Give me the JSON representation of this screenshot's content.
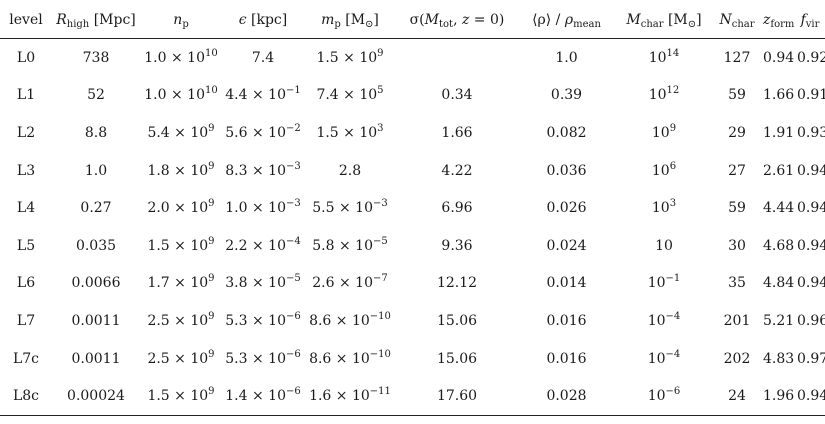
{
  "table": {
    "headers": [
      {
        "pre": "level"
      },
      {
        "sym": "R",
        "sub": "high",
        "post": " [Mpc]"
      },
      {
        "sym": "n",
        "sub": "p"
      },
      {
        "sym": "ϵ",
        "post": " [kpc]"
      },
      {
        "sym": "m",
        "sub": "p",
        "post": " [M",
        "sub2": "⊙",
        "post2": "]"
      },
      {
        "pre": "σ(",
        "sym": "M",
        "sub": "tot",
        "post": ", ",
        "sym2": "z",
        "post2": " = 0)"
      },
      {
        "pre": "⟨ρ⟩ / ",
        "sym": "ρ",
        "sub": "mean"
      },
      {
        "sym": "M",
        "sub": "char",
        "post": " [M",
        "sub2": "⊙",
        "post2": "]"
      },
      {
        "sym": "N",
        "sub": "char"
      },
      {
        "sym": "z",
        "sub": "form"
      },
      {
        "sym": "f",
        "sub": "vir"
      }
    ],
    "rows": [
      {
        "level": "L0",
        "R": "738",
        "np_m": "1.0 × 10",
        "np_e": "10",
        "eps_m": "7.4",
        "eps_e": "",
        "mp_m": "1.5 × 10",
        "mp_e": "9",
        "sigma": "",
        "rho": "1.0",
        "mchar_m": "10",
        "mchar_e": "14",
        "nchar": "127",
        "zform": "0.94",
        "fvir": "0.92"
      },
      {
        "level": "L1",
        "R": "52",
        "np_m": "1.0 × 10",
        "np_e": "10",
        "eps_m": "4.4 × 10",
        "eps_e": "−1",
        "mp_m": "7.4 × 10",
        "mp_e": "5",
        "sigma": "0.34",
        "rho": "0.39",
        "mchar_m": "10",
        "mchar_e": "12",
        "nchar": "59",
        "zform": "1.66",
        "fvir": "0.91"
      },
      {
        "level": "L2",
        "R": "8.8",
        "np_m": "5.4 × 10",
        "np_e": "9",
        "eps_m": "5.6 × 10",
        "eps_e": "−2",
        "mp_m": "1.5 × 10",
        "mp_e": "3",
        "sigma": "1.66",
        "rho": "0.082",
        "mchar_m": "10",
        "mchar_e": "9",
        "nchar": "29",
        "zform": "1.91",
        "fvir": "0.93"
      },
      {
        "level": "L3",
        "R": "1.0",
        "np_m": "1.8 × 10",
        "np_e": "9",
        "eps_m": "8.3 × 10",
        "eps_e": "−3",
        "mp_m": "2.8",
        "mp_e": "",
        "sigma": "4.22",
        "rho": "0.036",
        "mchar_m": "10",
        "mchar_e": "6",
        "nchar": "27",
        "zform": "2.61",
        "fvir": "0.94"
      },
      {
        "level": "L4",
        "R": "0.27",
        "np_m": "2.0 × 10",
        "np_e": "9",
        "eps_m": "1.0 × 10",
        "eps_e": "−3",
        "mp_m": "5.5 × 10",
        "mp_e": "−3",
        "sigma": "6.96",
        "rho": "0.026",
        "mchar_m": "10",
        "mchar_e": "3",
        "nchar": "59",
        "zform": "4.44",
        "fvir": "0.94"
      },
      {
        "level": "L5",
        "R": "0.035",
        "np_m": "1.5 × 10",
        "np_e": "9",
        "eps_m": "2.2 × 10",
        "eps_e": "−4",
        "mp_m": "5.8 × 10",
        "mp_e": "−5",
        "sigma": "9.36",
        "rho": "0.024",
        "mchar_m": "10",
        "mchar_e": "",
        "nchar": "30",
        "zform": "4.68",
        "fvir": "0.94"
      },
      {
        "level": "L6",
        "R": "0.0066",
        "np_m": "1.7 × 10",
        "np_e": "9",
        "eps_m": "3.8 × 10",
        "eps_e": "−5",
        "mp_m": "2.6 × 10",
        "mp_e": "−7",
        "sigma": "12.12",
        "rho": "0.014",
        "mchar_m": "10",
        "mchar_e": "−1",
        "nchar": "35",
        "zform": "4.84",
        "fvir": "0.94"
      },
      {
        "level": "L7",
        "R": "0.0011",
        "np_m": "2.5 × 10",
        "np_e": "9",
        "eps_m": "5.3 × 10",
        "eps_e": "−6",
        "mp_m": "8.6 × 10",
        "mp_e": "−10",
        "sigma": "15.06",
        "rho": "0.016",
        "mchar_m": "10",
        "mchar_e": "−4",
        "nchar": "201",
        "zform": "5.21",
        "fvir": "0.96"
      },
      {
        "level": "L7c",
        "R": "0.0011",
        "np_m": "2.5 × 10",
        "np_e": "9",
        "eps_m": "5.3 × 10",
        "eps_e": "−6",
        "mp_m": "8.6 × 10",
        "mp_e": "−10",
        "sigma": "15.06",
        "rho": "0.016",
        "mchar_m": "10",
        "mchar_e": "−4",
        "nchar": "202",
        "zform": "4.83",
        "fvir": "0.97"
      },
      {
        "level": "L8c",
        "R": "0.00024",
        "np_m": "1.5 × 10",
        "np_e": "9",
        "eps_m": "1.4 × 10",
        "eps_e": "−6",
        "mp_m": "1.6 × 10",
        "mp_e": "−11",
        "sigma": "17.60",
        "rho": "0.028",
        "mchar_m": "10",
        "mchar_e": "−6",
        "nchar": "24",
        "zform": "1.96",
        "fvir": "0.94"
      }
    ]
  }
}
